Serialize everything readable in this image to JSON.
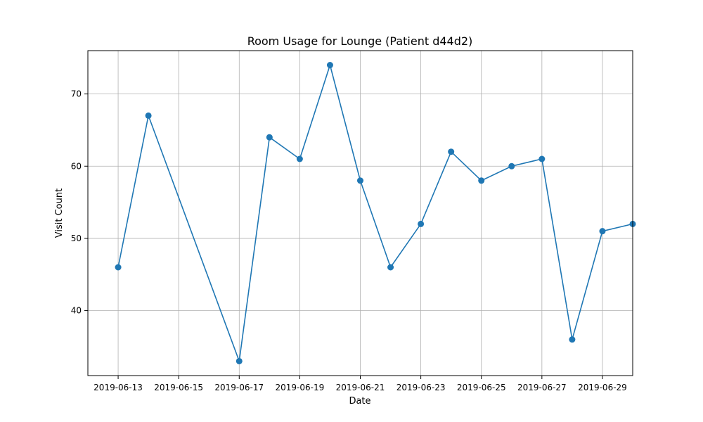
{
  "chart_data": {
    "type": "line",
    "title": "Room Usage for Lounge (Patient d44d2)",
    "xlabel": "Date",
    "ylabel": "Visit Count",
    "grid": true,
    "color": "#1f77b4",
    "xlim": [
      "2019-06-12",
      "2019-06-30"
    ],
    "ylim": [
      31,
      76
    ],
    "x_ticks": [
      "2019-06-13",
      "2019-06-15",
      "2019-06-17",
      "2019-06-19",
      "2019-06-21",
      "2019-06-23",
      "2019-06-25",
      "2019-06-27",
      "2019-06-29"
    ],
    "y_ticks": [
      40,
      50,
      60,
      70
    ],
    "x": [
      "2019-06-13",
      "2019-06-14",
      "2019-06-17",
      "2019-06-18",
      "2019-06-19",
      "2019-06-20",
      "2019-06-21",
      "2019-06-22",
      "2019-06-23",
      "2019-06-24",
      "2019-06-25",
      "2019-06-26",
      "2019-06-27",
      "2019-06-28",
      "2019-06-29",
      "2019-06-30"
    ],
    "values": [
      46,
      67,
      33,
      64,
      61,
      74,
      58,
      46,
      52,
      62,
      58,
      60,
      61,
      36,
      51,
      52
    ]
  }
}
